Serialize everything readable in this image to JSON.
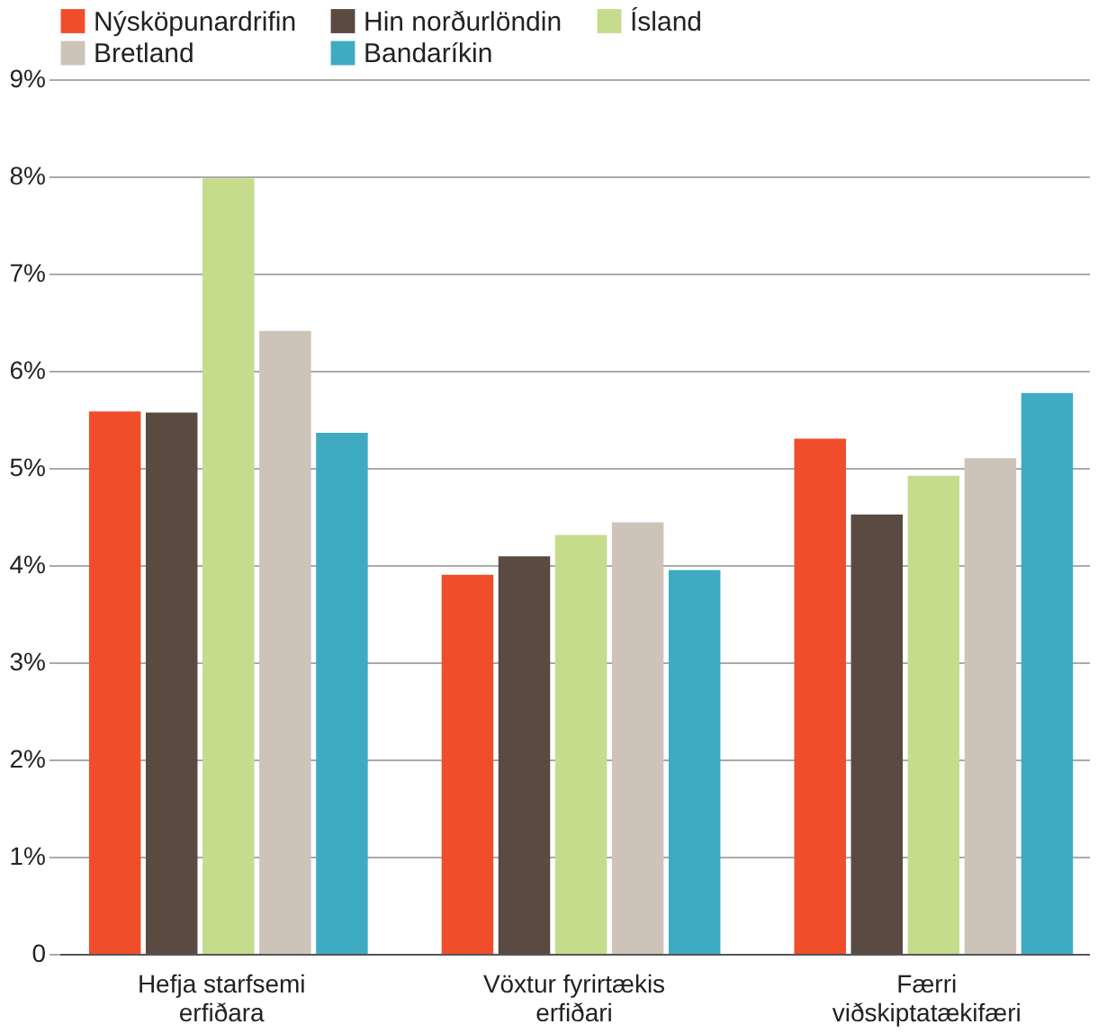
{
  "chart_data": {
    "type": "bar",
    "categories": [
      "Hefja starfsemi erfiðara",
      "Vöxtur fyrirtækis erfiðari",
      "Færri viðskiptatækifæri"
    ],
    "series": [
      {
        "name": "Nýsköpunardrifin",
        "color": "#f04e2b",
        "values": [
          5.58,
          3.9,
          5.3
        ]
      },
      {
        "name": "Hin norðurlöndin",
        "color": "#594a42",
        "values": [
          5.57,
          4.09,
          4.52
        ]
      },
      {
        "name": "Ísland",
        "color": "#c5dc8c",
        "values": [
          7.98,
          4.31,
          4.92
        ]
      },
      {
        "name": "Bretland",
        "color": "#cdc3b9",
        "values": [
          6.41,
          4.44,
          5.1
        ]
      },
      {
        "name": "Bandaríkin",
        "color": "#3eabc3",
        "values": [
          5.36,
          3.95,
          5.77
        ]
      }
    ],
    "ylim": [
      0,
      9
    ],
    "yticks": [
      {
        "value": 0,
        "label": "0"
      },
      {
        "value": 1,
        "label": "1%"
      },
      {
        "value": 2,
        "label": "2%"
      },
      {
        "value": 3,
        "label": "3%"
      },
      {
        "value": 4,
        "label": "4%"
      },
      {
        "value": 5,
        "label": "5%"
      },
      {
        "value": 6,
        "label": "6%"
      },
      {
        "value": 7,
        "label": "7%"
      },
      {
        "value": 8,
        "label": "8%"
      },
      {
        "value": 9,
        "label": "9%"
      }
    ],
    "grid": "y",
    "legend": "top"
  }
}
